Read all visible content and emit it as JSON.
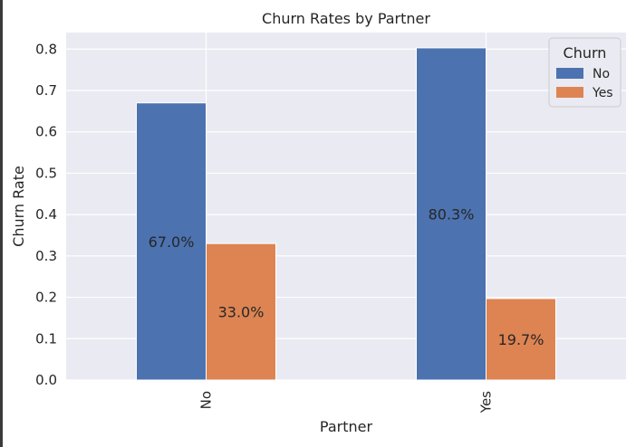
{
  "chart_data": {
    "type": "bar",
    "title": "Churn Rates by Partner",
    "xlabel": "Partner",
    "ylabel": "Churn Rate",
    "categories": [
      "No",
      "Yes"
    ],
    "series": [
      {
        "name": "No",
        "values": [
          0.67,
          0.803
        ],
        "labels": [
          "67.0%",
          "80.3%"
        ],
        "color": "#4c72b0"
      },
      {
        "name": "Yes",
        "values": [
          0.33,
          0.197
        ],
        "labels": [
          "33.0%",
          "19.7%"
        ],
        "color": "#dd8452"
      }
    ],
    "ylim": [
      0,
      0.84
    ],
    "yticks": [
      "0.0",
      "0.1",
      "0.2",
      "0.3",
      "0.4",
      "0.5",
      "0.6",
      "0.7",
      "0.8"
    ],
    "legend": {
      "title": "Churn",
      "placement": "top-right"
    },
    "grid": true,
    "background": "#eaeaf2"
  }
}
